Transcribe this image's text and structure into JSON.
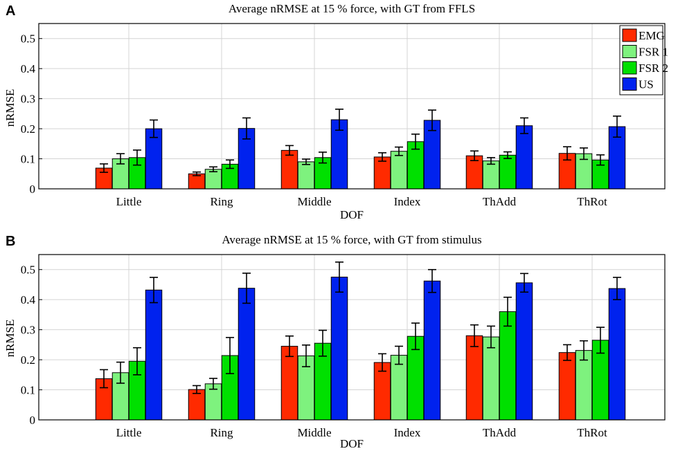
{
  "chart_data": [
    {
      "panel": "A",
      "type": "bar",
      "title": "Average nRMSE at 15 % force, with GT from FFLS",
      "xlabel": "DOF",
      "ylabel": "nRMSE",
      "ylim": [
        0,
        0.55
      ],
      "yticks": [
        "0",
        "0.1",
        "0.2",
        "0.3",
        "0.4",
        "0.5"
      ],
      "grid": true,
      "legend_position": "top-right",
      "categories": [
        "Little",
        "Ring",
        "Middle",
        "Index",
        "ThAdd",
        "ThRot"
      ],
      "series": [
        {
          "name": "EMG",
          "color": "#ff2a00",
          "values": [
            0.069,
            0.05,
            0.128,
            0.106,
            0.11,
            0.118
          ],
          "errors": [
            0.014,
            0.006,
            0.016,
            0.014,
            0.016,
            0.022
          ]
        },
        {
          "name": "FSR 1",
          "color": "#7ef27e",
          "values": [
            0.1,
            0.065,
            0.09,
            0.125,
            0.093,
            0.117
          ],
          "errors": [
            0.017,
            0.008,
            0.009,
            0.014,
            0.011,
            0.019
          ]
        },
        {
          "name": "FSR 2",
          "color": "#00e000",
          "values": [
            0.104,
            0.082,
            0.104,
            0.157,
            0.112,
            0.096
          ],
          "errors": [
            0.025,
            0.014,
            0.018,
            0.025,
            0.011,
            0.017
          ]
        },
        {
          "name": "US",
          "color": "#0022ee",
          "values": [
            0.2,
            0.201,
            0.23,
            0.228,
            0.21,
            0.207
          ],
          "errors": [
            0.029,
            0.035,
            0.035,
            0.034,
            0.026,
            0.035
          ]
        }
      ]
    },
    {
      "panel": "B",
      "type": "bar",
      "title": "Average nRMSE at 15 % force, with GT from stimulus",
      "xlabel": "DOF",
      "ylabel": "nRMSE",
      "ylim": [
        0,
        0.55
      ],
      "yticks": [
        "0",
        "0.1",
        "0.2",
        "0.3",
        "0.4",
        "0.5"
      ],
      "grid": true,
      "legend_position": "none",
      "categories": [
        "Little",
        "Ring",
        "Middle",
        "Index",
        "ThAdd",
        "ThRot"
      ],
      "series": [
        {
          "name": "EMG",
          "color": "#ff2a00",
          "values": [
            0.137,
            0.101,
            0.245,
            0.191,
            0.28,
            0.224
          ],
          "errors": [
            0.03,
            0.013,
            0.034,
            0.029,
            0.036,
            0.026
          ]
        },
        {
          "name": "FSR 1",
          "color": "#7ef27e",
          "values": [
            0.157,
            0.12,
            0.213,
            0.215,
            0.276,
            0.231
          ],
          "errors": [
            0.035,
            0.018,
            0.036,
            0.03,
            0.036,
            0.032
          ]
        },
        {
          "name": "FSR 2",
          "color": "#00e000",
          "values": [
            0.195,
            0.214,
            0.255,
            0.278,
            0.36,
            0.265
          ],
          "errors": [
            0.045,
            0.06,
            0.043,
            0.044,
            0.048,
            0.043
          ]
        },
        {
          "name": "US",
          "color": "#0022ee",
          "values": [
            0.432,
            0.438,
            0.475,
            0.462,
            0.456,
            0.437
          ],
          "errors": [
            0.042,
            0.05,
            0.05,
            0.038,
            0.031,
            0.037
          ]
        }
      ]
    }
  ]
}
